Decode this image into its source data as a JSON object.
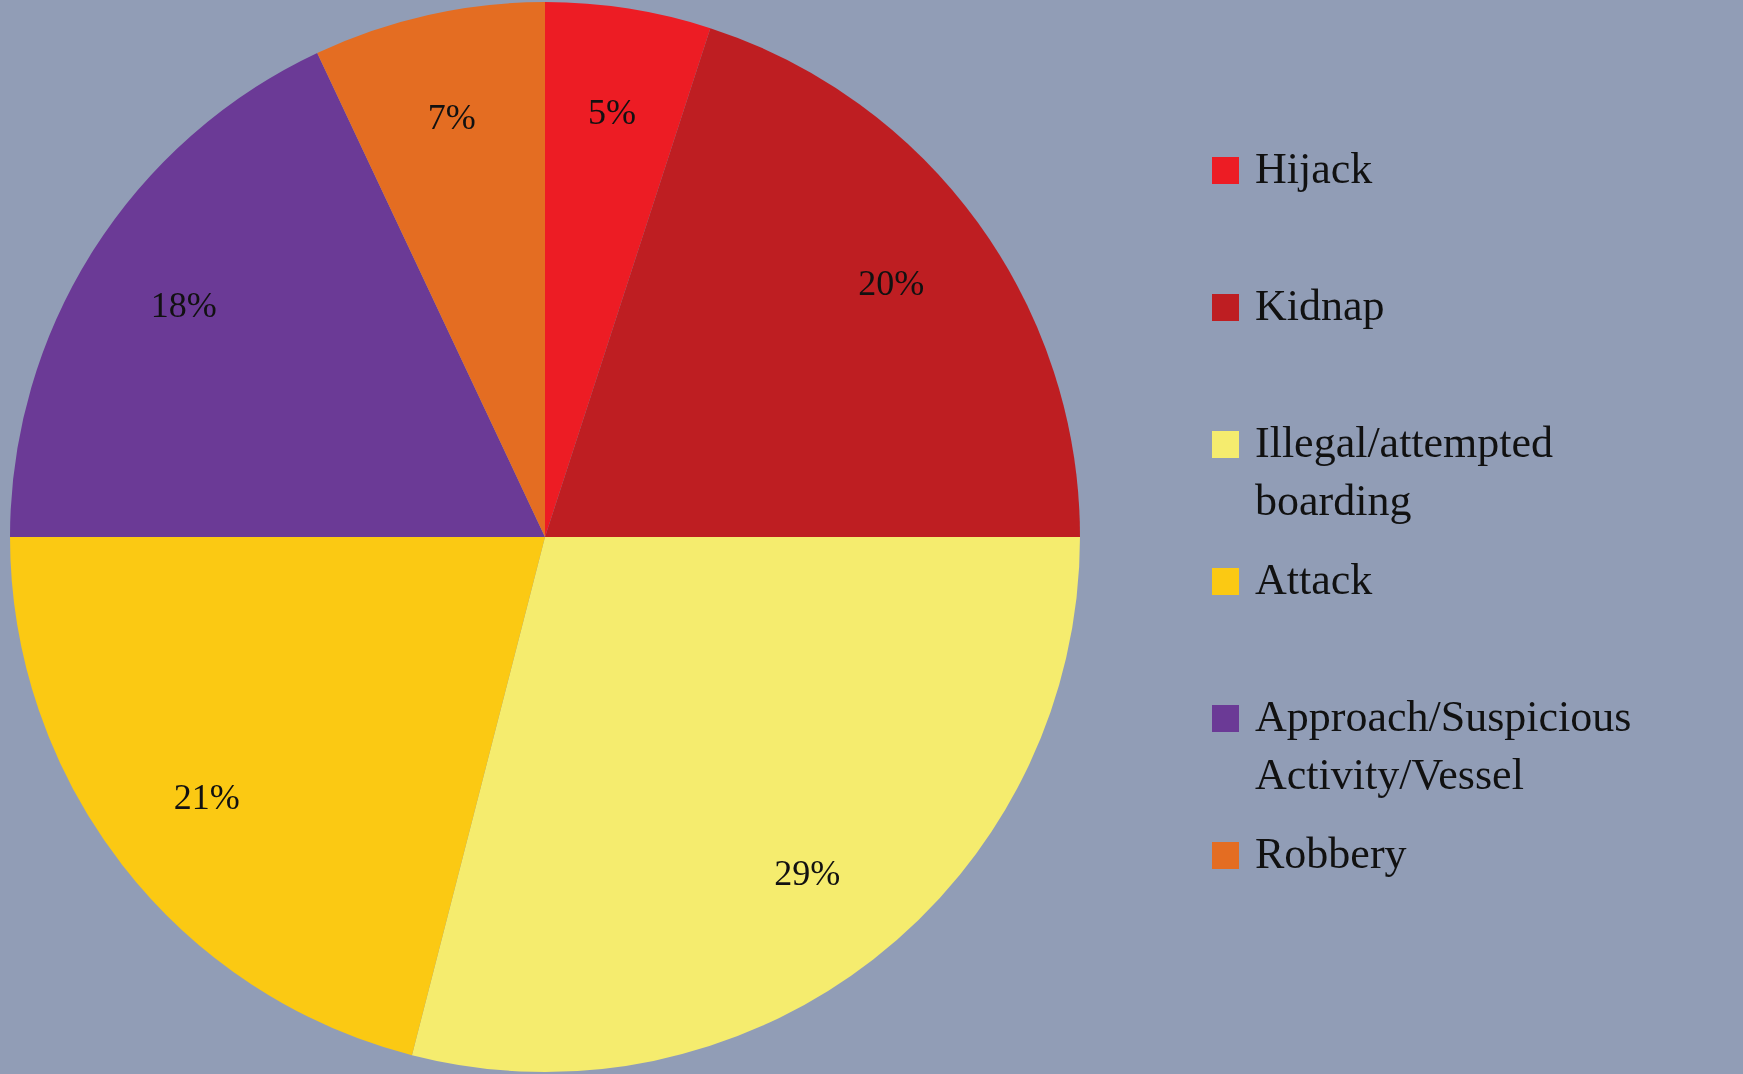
{
  "chart_data": {
    "type": "pie",
    "categories": [
      "Hijack",
      "Kidnap",
      "Illegal/attempted boarding",
      "Attack",
      "Approach/Suspicious Activity/Vessel",
      "Robbery"
    ],
    "values": [
      5,
      20,
      29,
      21,
      18,
      7
    ],
    "colors": [
      "#ed1c24",
      "#be1e22",
      "#f5ec6e",
      "#fbc913",
      "#6b3a96",
      "#e46d22"
    ],
    "value_labels": [
      "5%",
      "20%",
      "29%",
      "21%",
      "18%",
      "7%"
    ],
    "legend": "right"
  }
}
